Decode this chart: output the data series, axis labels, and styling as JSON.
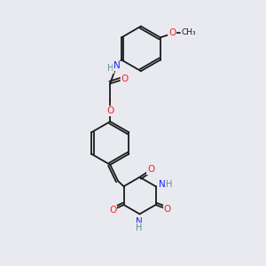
{
  "bg_color": "#e8eaf0",
  "line_color": "#1a1a1a",
  "bond_lw": 1.3,
  "atom_colors": {
    "N": "#2020ff",
    "O": "#ff2020",
    "H_label": "#5a9090",
    "C": "#1a1a1a"
  },
  "figsize": [
    3.0,
    3.0
  ],
  "dpi": 100,
  "xlim": [
    0,
    10
  ],
  "ylim": [
    0,
    10
  ]
}
